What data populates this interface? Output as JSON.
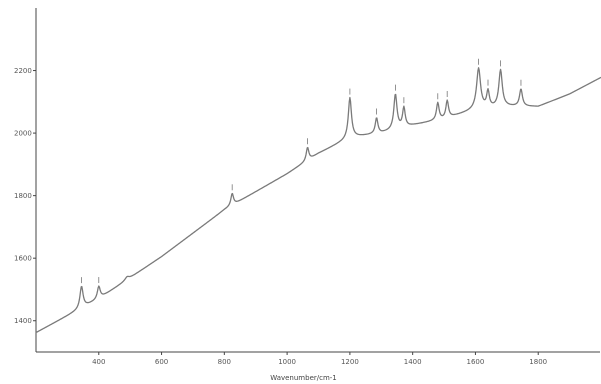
{
  "chart_data": {
    "type": "line",
    "title": "",
    "xlabel": "Wavenumber/cm-1",
    "ylabel": "",
    "xlim": [
      200,
      2000
    ],
    "ylim": [
      1300,
      2400
    ],
    "x_ticks": [
      400,
      600,
      800,
      1000,
      1200,
      1400,
      1600,
      1800
    ],
    "y_ticks": [
      1400,
      1600,
      1800,
      2000,
      2200
    ],
    "grid": false,
    "legend": "none",
    "colors": {
      "line": "#7a7a7a",
      "axis": "#444444",
      "text": "#555555"
    },
    "series": [
      {
        "baseline": [
          [
            200,
            1362
          ],
          [
            400,
            1470
          ],
          [
            600,
            1605
          ],
          [
            800,
            1755
          ],
          [
            1000,
            1870
          ],
          [
            1100,
            1935
          ],
          [
            1200,
            1985
          ],
          [
            1300,
            2000
          ],
          [
            1400,
            2025
          ],
          [
            1500,
            2045
          ],
          [
            1600,
            2075
          ],
          [
            1700,
            2085
          ],
          [
            1800,
            2085
          ],
          [
            1900,
            2125
          ],
          [
            2000,
            2178
          ]
        ],
        "peaks": [
          {
            "x": 345,
            "height": 70,
            "width": 12,
            "label": ""
          },
          {
            "x": 400,
            "height": 40,
            "width": 11,
            "label": ""
          },
          {
            "x": 490,
            "height": 10,
            "width": 16,
            "label": ""
          },
          {
            "x": 825,
            "height": 38,
            "width": 10,
            "label": ""
          },
          {
            "x": 1065,
            "height": 42,
            "width": 10,
            "label": ""
          },
          {
            "x": 1200,
            "height": 128,
            "width": 12,
            "label": ""
          },
          {
            "x": 1285,
            "height": 50,
            "width": 10,
            "label": ""
          },
          {
            "x": 1345,
            "height": 112,
            "width": 12,
            "label": ""
          },
          {
            "x": 1372,
            "height": 62,
            "width": 10,
            "label": ""
          },
          {
            "x": 1480,
            "height": 55,
            "width": 10,
            "label": ""
          },
          {
            "x": 1510,
            "height": 55,
            "width": 10,
            "label": ""
          },
          {
            "x": 1610,
            "height": 130,
            "width": 15,
            "label": ""
          },
          {
            "x": 1640,
            "height": 52,
            "width": 10,
            "label": ""
          },
          {
            "x": 1680,
            "height": 118,
            "width": 13,
            "label": ""
          },
          {
            "x": 1745,
            "height": 55,
            "width": 11,
            "label": ""
          }
        ]
      }
    ]
  }
}
